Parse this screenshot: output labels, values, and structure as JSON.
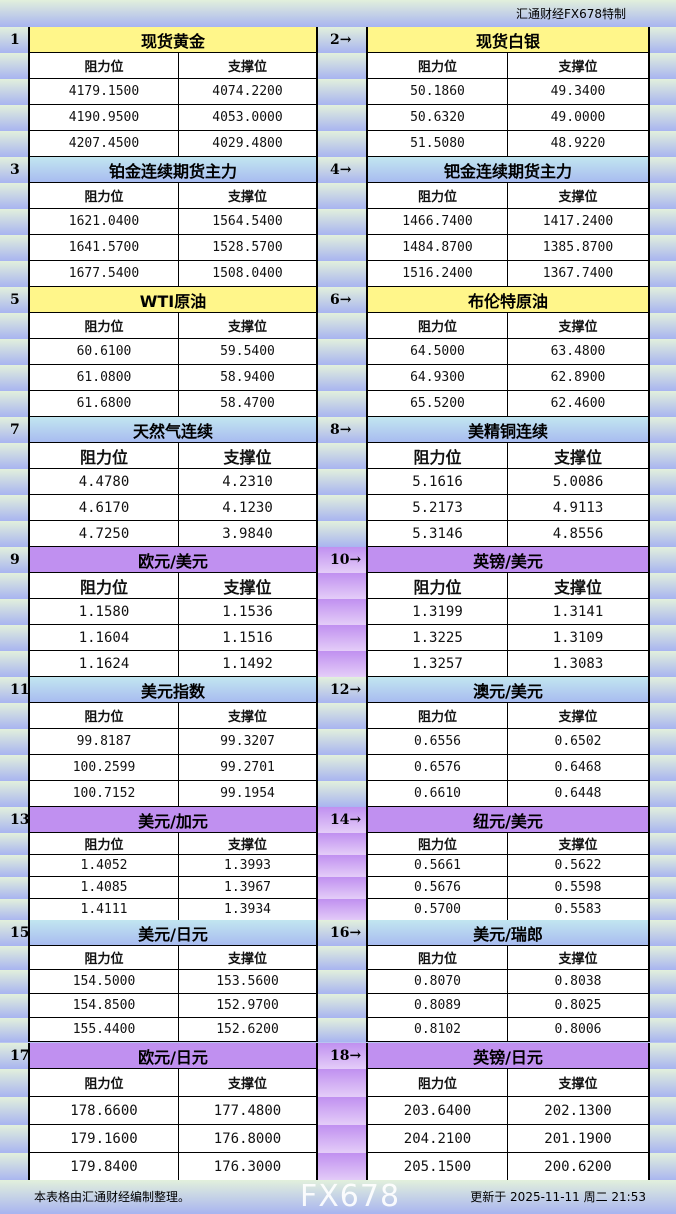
{
  "header": {
    "credit": "汇通财经FX678特制"
  },
  "columns": {
    "resistance": "阻力位",
    "support": "支撑位"
  },
  "colors": {
    "yellow": "#fff68a",
    "blue": "#b4d4f0",
    "purple": "#c090f0"
  },
  "sections": [
    {
      "num": "1",
      "title": "现货黄金",
      "theme": "yellow",
      "rows": [
        [
          "4179.1500",
          "4074.2200"
        ],
        [
          "4190.9500",
          "4053.0000"
        ],
        [
          "4207.4500",
          "4029.4800"
        ]
      ]
    },
    {
      "num": "2→",
      "title": "现货白银",
      "theme": "yellow",
      "rows": [
        [
          "50.1860",
          "49.3400"
        ],
        [
          "50.6320",
          "49.0000"
        ],
        [
          "51.5080",
          "48.9220"
        ]
      ]
    },
    {
      "num": "3",
      "title": "铂金连续期货主力",
      "theme": "blue",
      "rows": [
        [
          "1621.0400",
          "1564.5400"
        ],
        [
          "1641.5700",
          "1528.5700"
        ],
        [
          "1677.5400",
          "1508.0400"
        ]
      ]
    },
    {
      "num": "4→",
      "title": "钯金连续期货主力",
      "theme": "blue",
      "rows": [
        [
          "1466.7400",
          "1417.2400"
        ],
        [
          "1484.8700",
          "1385.8700"
        ],
        [
          "1516.2400",
          "1367.7400"
        ]
      ]
    },
    {
      "num": "5",
      "title": "WTI原油",
      "theme": "yellow",
      "rows": [
        [
          "60.6100",
          "59.5400"
        ],
        [
          "61.0800",
          "58.9400"
        ],
        [
          "61.6800",
          "58.4700"
        ]
      ]
    },
    {
      "num": "6→",
      "title": "布伦特原油",
      "theme": "yellow",
      "rows": [
        [
          "64.5000",
          "63.4800"
        ],
        [
          "64.9300",
          "62.8900"
        ],
        [
          "65.5200",
          "62.4600"
        ]
      ]
    },
    {
      "num": "7",
      "title": "天然气连续",
      "theme": "blue",
      "rows": [
        [
          "4.4780",
          "4.2310"
        ],
        [
          "4.6170",
          "4.1230"
        ],
        [
          "4.7250",
          "3.9840"
        ]
      ]
    },
    {
      "num": "8→",
      "title": "美精铜连续",
      "theme": "blue",
      "rows": [
        [
          "5.1616",
          "5.0086"
        ],
        [
          "5.2173",
          "4.9113"
        ],
        [
          "5.3146",
          "4.8556"
        ]
      ]
    },
    {
      "num": "9",
      "title": "欧元/美元",
      "theme": "purple",
      "rows": [
        [
          "1.1580",
          "1.1536"
        ],
        [
          "1.1604",
          "1.1516"
        ],
        [
          "1.1624",
          "1.1492"
        ]
      ]
    },
    {
      "num": "10→",
      "title": "英镑/美元",
      "theme": "purple",
      "rows": [
        [
          "1.3199",
          "1.3141"
        ],
        [
          "1.3225",
          "1.3109"
        ],
        [
          "1.3257",
          "1.3083"
        ]
      ]
    },
    {
      "num": "11",
      "title": "美元指数",
      "theme": "blue",
      "rows": [
        [
          "99.8187",
          "99.3207"
        ],
        [
          "100.2599",
          "99.2701"
        ],
        [
          "100.7152",
          "99.1954"
        ]
      ]
    },
    {
      "num": "12→",
      "title": "澳元/美元",
      "theme": "blue",
      "rows": [
        [
          "0.6556",
          "0.6502"
        ],
        [
          "0.6576",
          "0.6468"
        ],
        [
          "0.6610",
          "0.6448"
        ]
      ]
    },
    {
      "num": "13",
      "title": "美元/加元",
      "theme": "purple",
      "rows": [
        [
          "1.4052",
          "1.3993"
        ],
        [
          "1.4085",
          "1.3967"
        ],
        [
          "1.4111",
          "1.3934"
        ]
      ]
    },
    {
      "num": "14→",
      "title": "纽元/美元",
      "theme": "purple",
      "rows": [
        [
          "0.5661",
          "0.5622"
        ],
        [
          "0.5676",
          "0.5598"
        ],
        [
          "0.5700",
          "0.5583"
        ]
      ]
    },
    {
      "num": "15",
      "title": "美元/日元",
      "theme": "blue",
      "rows": [
        [
          "154.5000",
          "153.5600"
        ],
        [
          "154.8500",
          "152.9700"
        ],
        [
          "155.4400",
          "152.6200"
        ]
      ]
    },
    {
      "num": "16→",
      "title": "美元/瑞郎",
      "theme": "blue",
      "rows": [
        [
          "0.8070",
          "0.8038"
        ],
        [
          "0.8089",
          "0.8025"
        ],
        [
          "0.8102",
          "0.8006"
        ]
      ]
    },
    {
      "num": "17",
      "title": "欧元/日元",
      "theme": "purple",
      "rows": [
        [
          "178.6600",
          "177.4800"
        ],
        [
          "179.1600",
          "176.8000"
        ],
        [
          "179.8400",
          "176.3000"
        ]
      ]
    },
    {
      "num": "18→",
      "title": "英镑/日元",
      "theme": "purple",
      "rows": [
        [
          "203.6400",
          "202.1300"
        ],
        [
          "204.2100",
          "201.1900"
        ],
        [
          "205.1500",
          "200.6200"
        ]
      ]
    }
  ],
  "footer": {
    "note": "本表格由汇通财经编制整理。",
    "updated": "更新于 2025-11-11 周二 21:53",
    "watermark": "FX678"
  }
}
